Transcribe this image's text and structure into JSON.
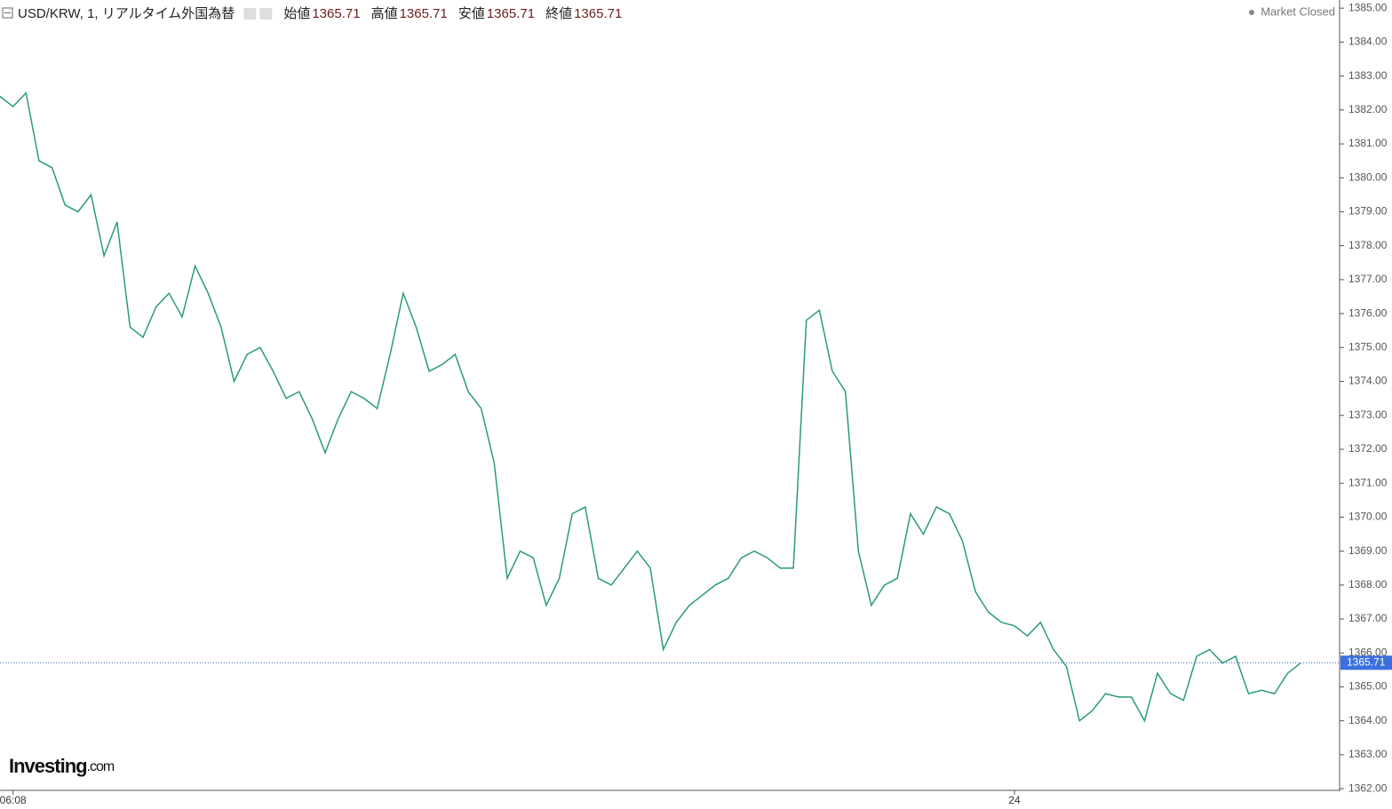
{
  "chart_data": {
    "type": "line",
    "title": "USD/KRW, 1, リアルタイム外国為替",
    "ohlc": [
      {
        "name": "始値",
        "value": 1365.71
      },
      {
        "name": "高値",
        "value": 1365.71
      },
      {
        "name": "安値",
        "value": 1365.71
      },
      {
        "name": "終値",
        "value": 1365.71
      }
    ],
    "status": "Market Closed",
    "brand": [
      "Investing",
      ".com"
    ],
    "current_price": 1365.71,
    "color": "#2a9d6f",
    "x": [
      0,
      1,
      2,
      3,
      4,
      5,
      6,
      7,
      8,
      9,
      10,
      11,
      12,
      13,
      14,
      15,
      16,
      17,
      18,
      19,
      20,
      21,
      22,
      23,
      24,
      25,
      26,
      27,
      28,
      29,
      30,
      31,
      32,
      33,
      34,
      35,
      36,
      37,
      38,
      39,
      40,
      41,
      42,
      43,
      44,
      45,
      46,
      47,
      48,
      49,
      50,
      51,
      52,
      53,
      54,
      55,
      56,
      57,
      58,
      59,
      60,
      61,
      62,
      63,
      64,
      65,
      66,
      67,
      68,
      69,
      70,
      71,
      72,
      73,
      74,
      75,
      76,
      77,
      78,
      79,
      80,
      81,
      82,
      83,
      84,
      85,
      86,
      87,
      88,
      89,
      90,
      91,
      92,
      93,
      94,
      95,
      96,
      97,
      98,
      99,
      100
    ],
    "values": [
      1382.4,
      1382.1,
      1382.5,
      1380.5,
      1380.3,
      1379.2,
      1379.0,
      1379.5,
      1377.7,
      1378.7,
      1375.6,
      1375.3,
      1376.2,
      1376.6,
      1375.9,
      1377.4,
      1376.6,
      1375.6,
      1374.0,
      1374.8,
      1375.0,
      1374.3,
      1373.5,
      1373.7,
      1372.9,
      1371.9,
      1372.9,
      1373.7,
      1373.5,
      1373.2,
      1374.8,
      1376.6,
      1375.6,
      1374.3,
      1374.5,
      1374.8,
      1373.7,
      1373.2,
      1371.6,
      1368.2,
      1369.0,
      1368.8,
      1367.4,
      1368.2,
      1370.1,
      1370.3,
      1368.2,
      1368.0,
      1368.5,
      1369.0,
      1368.5,
      1366.1,
      1366.9,
      1367.4,
      1367.7,
      1368.0,
      1368.2,
      1368.8,
      1369.0,
      1368.8,
      1368.5,
      1368.5,
      1375.8,
      1376.1,
      1374.3,
      1373.7,
      1369.0,
      1367.4,
      1368.0,
      1368.2,
      1370.1,
      1369.5,
      1370.3,
      1370.1,
      1369.3,
      1367.8,
      1367.2,
      1366.9,
      1366.8,
      1366.5,
      1366.9,
      1366.1,
      1365.6,
      1364.0,
      1364.3,
      1364.8,
      1364.7,
      1364.7,
      1364.0,
      1365.4,
      1364.8,
      1364.6,
      1365.9,
      1366.1,
      1365.7,
      1365.9,
      1364.8,
      1364.9,
      1364.8,
      1365.4,
      1365.7
    ],
    "xlim": [
      0,
      103
    ],
    "xticks": [
      {
        "value": 1,
        "label": "06:08"
      },
      {
        "value": 78,
        "label": "24"
      }
    ],
    "ylim": [
      1361.95,
      1385.24
    ],
    "yticks": [
      {
        "value": 1362,
        "label": "1362.00"
      },
      {
        "value": 1363,
        "label": "1363.00"
      },
      {
        "value": 1364,
        "label": "1364.00"
      },
      {
        "value": 1365,
        "label": "1365.00"
      },
      {
        "value": 1366,
        "label": "1366.00"
      },
      {
        "value": 1367,
        "label": "1367.00"
      },
      {
        "value": 1368,
        "label": "1368.00"
      },
      {
        "value": 1369,
        "label": "1369.00"
      },
      {
        "value": 1370,
        "label": "1370.00"
      },
      {
        "value": 1371,
        "label": "1371.00"
      },
      {
        "value": 1372,
        "label": "1372.00"
      },
      {
        "value": 1373,
        "label": "1373.00"
      },
      {
        "value": 1374,
        "label": "1374.00"
      },
      {
        "value": 1375,
        "label": "1375.00"
      },
      {
        "value": 1376,
        "label": "1376.00"
      },
      {
        "value": 1377,
        "label": "1377.00"
      },
      {
        "value": 1378,
        "label": "1378.00"
      },
      {
        "value": 1379,
        "label": "1379.00"
      },
      {
        "value": 1380,
        "label": "1380.00"
      },
      {
        "value": 1381,
        "label": "1381.00"
      },
      {
        "value": 1382,
        "label": "1382.00"
      },
      {
        "value": 1383,
        "label": "1383.00"
      },
      {
        "value": 1384,
        "label": "1384.00"
      },
      {
        "value": 1385,
        "label": "1385.00"
      }
    ]
  }
}
